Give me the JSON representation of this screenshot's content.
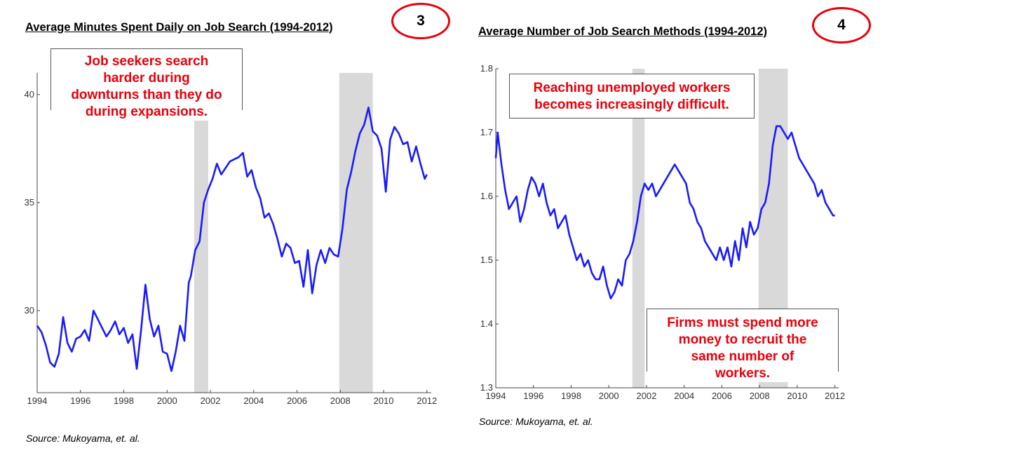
{
  "left": {
    "title": "Average Minutes Spent Daily on Job Search (1994-2012)",
    "badge": "3",
    "note_line1": "Job seekers search",
    "note_line2": "harder during",
    "note_line3": "downturns than they do",
    "note_line4": "during expansions.",
    "source": "Source: Mukoyama, et. al."
  },
  "right": {
    "title": "Average Number of Job Search Methods (1994-2012)",
    "badge": "4",
    "note1_line1": "Reaching unemployed workers",
    "note1_line2": "becomes increasingly difficult.",
    "note2_line1": "Firms must spend more",
    "note2_line2": "money to recruit the",
    "note2_line3": "same number of",
    "note2_line4": "workers.",
    "source": "Source: Mukoyama, et. al."
  },
  "colors": {
    "line": "#1a1aff",
    "recession": "#d9d9d9",
    "annotation": "#e8000b",
    "badge_ring": "#e8000b"
  },
  "chart_data": [
    {
      "type": "line",
      "title": "Average Minutes Spent Daily on Job Search (1994-2012)",
      "xlabel": "",
      "ylabel": "",
      "xlim": [
        1994,
        2012.2
      ],
      "ylim": [
        26.2,
        41.0
      ],
      "xticks": [
        "1994",
        "1996",
        "1998",
        "2000",
        "2002",
        "2004",
        "2006",
        "2008",
        "2010",
        "2012"
      ],
      "yticks": [
        "30",
        "35",
        "40"
      ],
      "recessions": [
        [
          2001.25,
          2001.9
        ],
        [
          2007.95,
          2009.5
        ]
      ],
      "series": [
        {
          "x": [
            1994,
            1994.2,
            1994.4,
            1994.6,
            1994.8,
            1995,
            1995.2,
            1995.4,
            1995.6,
            1995.8,
            1996,
            1996.2,
            1996.4,
            1996.6,
            1996.8,
            1997,
            1997.2,
            1997.4,
            1997.6,
            1997.8,
            1998,
            1998.2,
            1998.4,
            1998.6,
            1998.8,
            1999,
            1999.2,
            1999.4,
            1999.6,
            1999.8,
            2000,
            2000.2,
            2000.4,
            2000.6,
            2000.8,
            2001,
            2001.1,
            2001.3,
            2001.5,
            2001.7,
            2001.9,
            2002.1,
            2002.3,
            2002.5,
            2002.7,
            2002.9,
            2003.1,
            2003.3,
            2003.5,
            2003.7,
            2003.9,
            2004.1,
            2004.3,
            2004.5,
            2004.7,
            2004.9,
            2005.1,
            2005.3,
            2005.5,
            2005.7,
            2005.9,
            2006.1,
            2006.3,
            2006.5,
            2006.7,
            2006.9,
            2007.1,
            2007.3,
            2007.5,
            2007.7,
            2007.9,
            2008.1,
            2008.3,
            2008.5,
            2008.7,
            2008.9,
            2009.1,
            2009.3,
            2009.5,
            2009.7,
            2009.9,
            2010.1,
            2010.3,
            2010.5,
            2010.7,
            2010.9,
            2011.1,
            2011.3,
            2011.5,
            2011.7,
            2011.9,
            2012
          ],
          "y": [
            29.3,
            29.0,
            28.4,
            27.6,
            27.4,
            28.0,
            29.7,
            28.5,
            28.1,
            28.7,
            28.8,
            29.1,
            28.6,
            30.0,
            29.6,
            29.2,
            28.8,
            29.1,
            29.5,
            28.9,
            29.2,
            28.5,
            28.9,
            27.3,
            29.1,
            31.2,
            29.6,
            28.8,
            29.3,
            28.1,
            28.0,
            27.2,
            28.1,
            29.3,
            28.6,
            31.3,
            31.6,
            32.8,
            33.2,
            35.0,
            35.6,
            36.1,
            36.8,
            36.3,
            36.6,
            36.9,
            37.0,
            37.1,
            37.3,
            36.2,
            36.5,
            35.7,
            35.2,
            34.3,
            34.5,
            34.0,
            33.3,
            32.5,
            33.1,
            32.9,
            32.2,
            32.3,
            31.1,
            32.8,
            30.8,
            32.1,
            32.8,
            32.2,
            32.9,
            32.6,
            32.5,
            33.8,
            35.6,
            36.4,
            37.4,
            38.2,
            38.6,
            39.4,
            38.3,
            38.1,
            37.5,
            35.5,
            37.9,
            38.5,
            38.2,
            37.7,
            37.8,
            36.9,
            37.6,
            36.8,
            36.1,
            36.3
          ]
        }
      ]
    },
    {
      "type": "line",
      "title": "Average Number of Job Search Methods (1994-2012)",
      "xlabel": "",
      "ylabel": "",
      "xlim": [
        1994,
        2012.2
      ],
      "ylim": [
        1.3,
        1.8
      ],
      "xticks": [
        "1994",
        "1996",
        "1998",
        "2000",
        "2002",
        "2004",
        "2006",
        "2008",
        "2010",
        "2012"
      ],
      "yticks": [
        "1.3",
        "1.4",
        "1.5",
        "1.6",
        "1.7",
        "1.8"
      ],
      "recessions": [
        [
          2001.25,
          2001.9
        ],
        [
          2007.95,
          2009.5
        ]
      ],
      "series": [
        {
          "x": [
            1994,
            1994.1,
            1994.3,
            1994.5,
            1994.7,
            1994.9,
            1995.1,
            1995.3,
            1995.5,
            1995.7,
            1995.9,
            1996.1,
            1996.3,
            1996.5,
            1996.7,
            1996.9,
            1997.1,
            1997.3,
            1997.5,
            1997.7,
            1997.9,
            1998.1,
            1998.3,
            1998.5,
            1998.7,
            1998.9,
            1999.1,
            1999.3,
            1999.5,
            1999.7,
            1999.9,
            2000.1,
            2000.3,
            2000.5,
            2000.7,
            2000.9,
            2001.1,
            2001.3,
            2001.5,
            2001.7,
            2001.9,
            2002.1,
            2002.3,
            2002.5,
            2002.7,
            2002.9,
            2003.1,
            2003.3,
            2003.5,
            2003.7,
            2003.9,
            2004.1,
            2004.3,
            2004.5,
            2004.7,
            2004.9,
            2005.1,
            2005.3,
            2005.5,
            2005.7,
            2005.9,
            2006.1,
            2006.3,
            2006.5,
            2006.7,
            2006.9,
            2007.1,
            2007.3,
            2007.5,
            2007.7,
            2007.9,
            2008.1,
            2008.3,
            2008.5,
            2008.7,
            2008.9,
            2009.1,
            2009.3,
            2009.5,
            2009.7,
            2009.9,
            2010.1,
            2010.3,
            2010.5,
            2010.7,
            2010.9,
            2011.1,
            2011.3,
            2011.5,
            2011.7,
            2011.9,
            2012
          ],
          "y": [
            1.66,
            1.7,
            1.65,
            1.61,
            1.58,
            1.59,
            1.6,
            1.56,
            1.58,
            1.61,
            1.63,
            1.62,
            1.6,
            1.62,
            1.59,
            1.57,
            1.58,
            1.55,
            1.56,
            1.57,
            1.54,
            1.52,
            1.5,
            1.51,
            1.49,
            1.5,
            1.48,
            1.47,
            1.47,
            1.49,
            1.46,
            1.44,
            1.45,
            1.47,
            1.46,
            1.5,
            1.51,
            1.53,
            1.56,
            1.6,
            1.62,
            1.61,
            1.62,
            1.6,
            1.61,
            1.62,
            1.63,
            1.64,
            1.65,
            1.64,
            1.63,
            1.62,
            1.59,
            1.58,
            1.56,
            1.55,
            1.53,
            1.52,
            1.51,
            1.5,
            1.52,
            1.5,
            1.52,
            1.49,
            1.53,
            1.5,
            1.55,
            1.52,
            1.56,
            1.54,
            1.55,
            1.58,
            1.59,
            1.62,
            1.68,
            1.71,
            1.71,
            1.7,
            1.69,
            1.7,
            1.68,
            1.66,
            1.65,
            1.64,
            1.63,
            1.62,
            1.6,
            1.61,
            1.59,
            1.58,
            1.57,
            1.57
          ]
        }
      ]
    }
  ]
}
